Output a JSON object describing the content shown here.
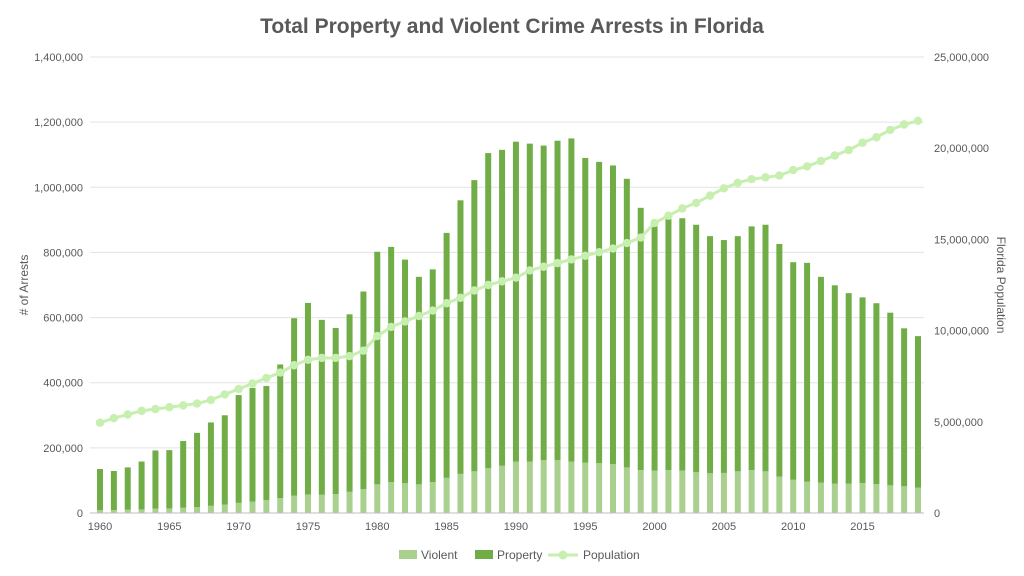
{
  "chart_data": {
    "type": "bar",
    "stacked": true,
    "title": "Total Property and Violent Crime Arrests in Florida",
    "xlabel": "",
    "ylabel": "# of Arrests",
    "y2label": "Florida Population",
    "ylim": [
      0,
      1400000
    ],
    "y2lim": [
      0,
      25000000
    ],
    "x_ticks": [
      "1960",
      "1965",
      "1970",
      "1975",
      "1980",
      "1985",
      "1990",
      "1995",
      "2000",
      "2005",
      "2010",
      "2015"
    ],
    "y_ticks": [
      "0",
      "200,000",
      "400,000",
      "600,000",
      "800,000",
      "1,000,000",
      "1,200,000",
      "1,400,000"
    ],
    "y2_ticks": [
      "0",
      "5,000,000",
      "10,000,000",
      "15,000,000",
      "20,000,000",
      "25,000,000"
    ],
    "gridlines": true,
    "legend_position": "bottom",
    "colors": {
      "violent": "#a9d08e",
      "property": "#70ad47",
      "population": "#c6efb0",
      "grid": "#e3e3e3",
      "text": "#595959"
    },
    "categories": [
      1960,
      1961,
      1962,
      1963,
      1964,
      1965,
      1966,
      1967,
      1968,
      1969,
      1970,
      1971,
      1972,
      1973,
      1974,
      1975,
      1976,
      1977,
      1978,
      1979,
      1980,
      1981,
      1982,
      1983,
      1984,
      1985,
      1986,
      1987,
      1988,
      1989,
      1990,
      1991,
      1992,
      1993,
      1994,
      1995,
      1996,
      1997,
      1998,
      1999,
      2000,
      2001,
      2002,
      2003,
      2004,
      2005,
      2006,
      2007,
      2008,
      2009,
      2010,
      2011,
      2012,
      2013,
      2014,
      2015,
      2016,
      2017,
      2018,
      2019
    ],
    "series": [
      {
        "name": "Violent",
        "axis": "left",
        "kind": "bar",
        "values": [
          9000,
          9000,
          10000,
          11000,
          13000,
          14000,
          16000,
          18000,
          22000,
          26000,
          31000,
          35000,
          40000,
          46000,
          53000,
          57000,
          56000,
          58000,
          65000,
          73000,
          88000,
          95000,
          92000,
          88000,
          95000,
          108000,
          120000,
          128000,
          138000,
          145000,
          158000,
          158000,
          162000,
          162000,
          158000,
          155000,
          153000,
          150000,
          140000,
          132000,
          130000,
          132000,
          130000,
          125000,
          122000,
          123000,
          128000,
          132000,
          128000,
          112000,
          102000,
          96000,
          93000,
          90000,
          90000,
          92000,
          89000,
          85000,
          82000,
          78000
        ]
      },
      {
        "name": "Property",
        "axis": "left",
        "kind": "bar",
        "values": [
          126000,
          120000,
          130000,
          147000,
          179000,
          179000,
          205000,
          228000,
          256000,
          274000,
          331000,
          349000,
          350000,
          410000,
          545000,
          588000,
          537000,
          510000,
          545000,
          607000,
          714000,
          722000,
          686000,
          637000,
          653000,
          752000,
          840000,
          894000,
          967000,
          970000,
          982000,
          976000,
          966000,
          981000,
          992000,
          935000,
          925000,
          917000,
          886000,
          805000,
          770000,
          770000,
          775000,
          760000,
          728000,
          715000,
          722000,
          748000,
          757000,
          714000,
          668000,
          672000,
          632000,
          609000,
          585000,
          570000,
          555000,
          530000,
          485000,
          465000
        ]
      },
      {
        "name": "Population",
        "axis": "right",
        "kind": "line",
        "values": [
          4950000,
          5200000,
          5400000,
          5600000,
          5700000,
          5800000,
          5900000,
          6000000,
          6200000,
          6500000,
          6800000,
          7100000,
          7400000,
          7700000,
          8100000,
          8400000,
          8500000,
          8500000,
          8600000,
          8900000,
          9700000,
          10200000,
          10500000,
          10800000,
          11100000,
          11500000,
          11800000,
          12200000,
          12500000,
          12700000,
          12900000,
          13300000,
          13500000,
          13700000,
          13900000,
          14100000,
          14300000,
          14500000,
          14800000,
          15100000,
          15900000,
          16300000,
          16700000,
          17000000,
          17400000,
          17800000,
          18100000,
          18300000,
          18400000,
          18500000,
          18800000,
          19000000,
          19300000,
          19600000,
          19900000,
          20300000,
          20600000,
          21000000,
          21300000,
          21500000
        ]
      }
    ]
  }
}
